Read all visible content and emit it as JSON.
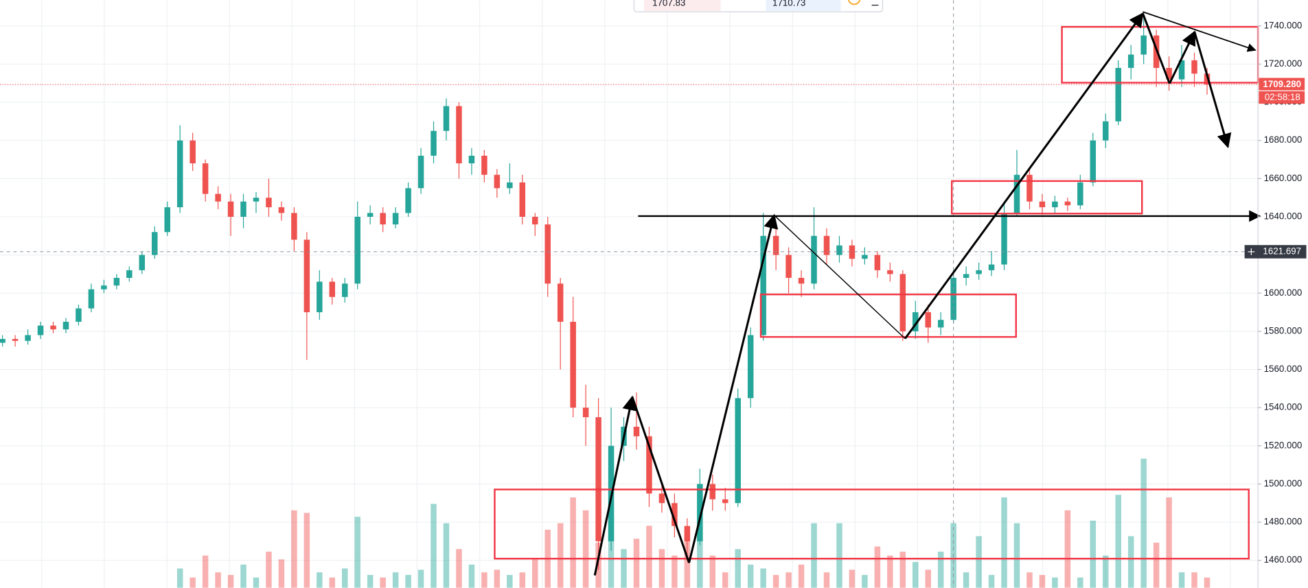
{
  "toolbar": {
    "sell": "1707.83",
    "buy": "1710.73"
  },
  "chart_data": {
    "type": "candlestick",
    "up_color": "#26a69a",
    "down_color": "#ef5350",
    "grid": true,
    "ylim": [
      1445.6,
      1753.5
    ],
    "yticks": [
      {
        "value": 1460,
        "label": "1460.000"
      },
      {
        "value": 1480,
        "label": "1480.000"
      },
      {
        "value": 1500,
        "label": "1500.000"
      },
      {
        "value": 1520,
        "label": "1520.000"
      },
      {
        "value": 1540,
        "label": "1540.000"
      },
      {
        "value": 1560,
        "label": "1560.000"
      },
      {
        "value": 1580,
        "label": "1580.000"
      },
      {
        "value": 1600,
        "label": "1600.000"
      },
      {
        "value": 1620,
        "label": "1620.000"
      },
      {
        "value": 1640,
        "label": "1640.000"
      },
      {
        "value": 1660,
        "label": "1660.000"
      },
      {
        "value": 1680,
        "label": "1680.000"
      },
      {
        "value": 1700,
        "label": "1700.000"
      },
      {
        "value": 1720,
        "label": "1720.000"
      },
      {
        "value": 1740,
        "label": "1740.000"
      }
    ],
    "last_price": {
      "value": 1709.28,
      "label": "1709.280"
    },
    "countdown": "02:58:18",
    "crosshair": {
      "value": 1621.697,
      "label": "1621.697"
    },
    "open": [
      1574,
      1576,
      1575,
      1578,
      1583,
      1581,
      1585,
      1592,
      1602,
      1604,
      1608,
      1612,
      1620,
      1632,
      1645,
      1680,
      1668,
      1652,
      1648,
      1640,
      1648,
      1650,
      1645,
      1642,
      1628,
      1590,
      1606,
      1598,
      1605,
      1640,
      1642,
      1636,
      1642,
      1655,
      1672,
      1685,
      1698,
      1668,
      1672,
      1662,
      1655,
      1658,
      1640,
      1636,
      1605,
      1585,
      1540,
      1535,
      1470,
      1520,
      1530,
      1525,
      1495,
      1490,
      1478,
      1470,
      1500,
      1492,
      1490,
      1545,
      1578,
      1630,
      1620,
      1608,
      1605,
      1630,
      1620,
      1625,
      1618,
      1620,
      1612,
      1610,
      1580,
      1590,
      1582,
      1586,
      1608,
      1610,
      1612,
      1615,
      1642,
      1662,
      1648,
      1645,
      1648,
      1646,
      1658,
      1680,
      1690,
      1718,
      1725,
      1735,
      1718,
      1712,
      1722,
      1715
    ],
    "high": [
      1578,
      1578,
      1581,
      1585,
      1585,
      1587,
      1594,
      1605,
      1607,
      1610,
      1614,
      1622,
      1635,
      1648,
      1688,
      1684,
      1670,
      1656,
      1652,
      1652,
      1653,
      1660,
      1648,
      1645,
      1632,
      1612,
      1608,
      1608,
      1648,
      1646,
      1645,
      1645,
      1658,
      1676,
      1690,
      1702,
      1700,
      1676,
      1675,
      1665,
      1668,
      1662,
      1642,
      1640,
      1608,
      1598,
      1552,
      1545,
      1540,
      1535,
      1548,
      1530,
      1500,
      1495,
      1482,
      1508,
      1505,
      1498,
      1550,
      1582,
      1642,
      1634,
      1624,
      1612,
      1645,
      1634,
      1630,
      1628,
      1624,
      1622,
      1616,
      1612,
      1596,
      1594,
      1590,
      1612,
      1614,
      1616,
      1622,
      1648,
      1675,
      1666,
      1652,
      1651,
      1650,
      1662,
      1684,
      1694,
      1722,
      1730,
      1746,
      1738,
      1724,
      1730,
      1726,
      1718
    ],
    "low": [
      1572,
      1572,
      1573,
      1576,
      1579,
      1579,
      1583,
      1590,
      1600,
      1602,
      1606,
      1610,
      1618,
      1630,
      1642,
      1664,
      1648,
      1644,
      1630,
      1634,
      1642,
      1640,
      1638,
      1622,
      1565,
      1586,
      1594,
      1595,
      1602,
      1636,
      1632,
      1634,
      1640,
      1652,
      1668,
      1680,
      1660,
      1662,
      1658,
      1650,
      1652,
      1636,
      1630,
      1598,
      1560,
      1535,
      1520,
      1455,
      1465,
      1512,
      1518,
      1488,
      1485,
      1472,
      1460,
      1468,
      1486,
      1486,
      1488,
      1540,
      1575,
      1612,
      1600,
      1598,
      1602,
      1615,
      1616,
      1614,
      1615,
      1608,
      1606,
      1575,
      1576,
      1574,
      1578,
      1584,
      1604,
      1607,
      1609,
      1612,
      1640,
      1644,
      1641,
      1642,
      1643,
      1644,
      1656,
      1676,
      1688,
      1712,
      1720,
      1708,
      1706,
      1708,
      1708,
      1704
    ],
    "close": [
      1576,
      1575,
      1578,
      1583,
      1581,
      1585,
      1592,
      1602,
      1604,
      1608,
      1612,
      1620,
      1632,
      1645,
      1680,
      1668,
      1652,
      1648,
      1640,
      1648,
      1650,
      1645,
      1642,
      1628,
      1590,
      1606,
      1598,
      1605,
      1640,
      1642,
      1636,
      1642,
      1655,
      1672,
      1685,
      1698,
      1668,
      1672,
      1662,
      1655,
      1658,
      1640,
      1636,
      1605,
      1585,
      1540,
      1535,
      1470,
      1520,
      1530,
      1525,
      1495,
      1490,
      1478,
      1470,
      1500,
      1492,
      1490,
      1545,
      1578,
      1630,
      1620,
      1608,
      1605,
      1630,
      1620,
      1625,
      1618,
      1620,
      1612,
      1610,
      1580,
      1590,
      1582,
      1586,
      1608,
      1610,
      1612,
      1615,
      1642,
      1662,
      1648,
      1645,
      1648,
      1646,
      1658,
      1680,
      1690,
      1718,
      1725,
      1735,
      1718,
      1712,
      1722,
      1715,
      1709.28
    ],
    "volume": [
      null,
      null,
      null,
      null,
      null,
      null,
      null,
      null,
      null,
      null,
      null,
      null,
      null,
      null,
      15,
      8,
      25,
      12,
      10,
      18,
      8,
      28,
      22,
      60,
      58,
      12,
      8,
      15,
      55,
      10,
      8,
      12,
      10,
      14,
      65,
      50,
      30,
      18,
      12,
      14,
      10,
      12,
      22,
      45,
      50,
      70,
      60,
      35,
      55,
      30,
      38,
      48,
      30,
      25,
      40,
      60,
      25,
      12,
      30,
      18,
      15,
      10,
      12,
      18,
      50,
      12,
      50,
      14,
      10,
      32,
      25,
      28,
      20,
      14,
      28,
      50,
      12,
      40,
      10,
      70,
      50,
      12,
      10,
      8,
      60,
      8,
      52,
      25,
      72,
      40,
      100,
      35,
      70,
      12,
      12,
      8
    ]
  }
}
